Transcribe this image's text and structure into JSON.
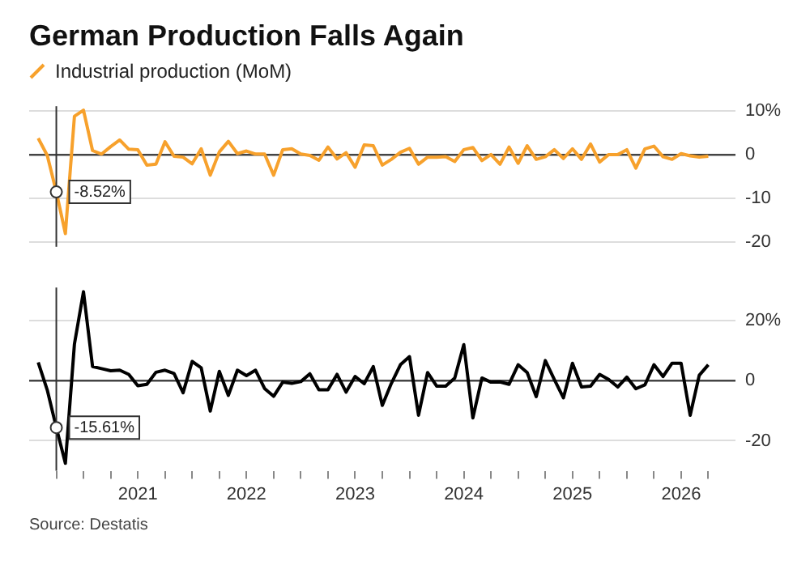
{
  "chart_data": [
    {
      "type": "line",
      "title": "German Production Falls Again",
      "x": [
        "2020-02",
        "2020-03",
        "2020-04",
        "2020-05",
        "2020-06",
        "2020-07",
        "2020-08",
        "2020-09",
        "2020-10",
        "2020-11",
        "2020-12",
        "2021-01",
        "2021-02",
        "2021-03",
        "2021-04",
        "2021-05",
        "2021-06",
        "2021-07",
        "2021-08",
        "2021-09",
        "2021-10",
        "2021-11",
        "2021-12",
        "2022-01",
        "2022-02",
        "2022-03",
        "2022-04",
        "2022-05",
        "2022-06",
        "2022-07",
        "2022-08",
        "2022-09",
        "2022-10",
        "2022-11",
        "2022-12",
        "2023-01",
        "2023-02",
        "2023-03",
        "2023-04",
        "2023-05",
        "2023-06",
        "2023-07",
        "2023-08",
        "2023-09",
        "2023-10",
        "2023-11",
        "2023-12",
        "2024-01",
        "2024-02",
        "2024-03",
        "2024-04",
        "2024-05",
        "2024-06",
        "2024-07",
        "2024-08",
        "2024-09",
        "2024-10",
        "2024-11",
        "2024-12",
        "2025-01",
        "2025-02",
        "2025-03",
        "2025-04",
        "2025-05",
        "2025-06",
        "2025-07",
        "2025-08",
        "2025-09",
        "2025-10",
        "2025-11",
        "2025-12",
        "2026-01",
        "2026-02",
        "2026-03",
        "2026-04"
      ],
      "series": [
        {
          "name": "Industrial production (MoM)",
          "color": "#f7a12c",
          "values": [
            3.7,
            -0.2,
            -8.5,
            -18.0,
            8.7,
            10.1,
            0.9,
            0.1,
            1.8,
            3.3,
            1.2,
            1.1,
            -2.4,
            -2.2,
            2.9,
            -0.4,
            -0.6,
            -2.1,
            1.3,
            -4.7,
            0.6,
            3.0,
            0.2,
            0.8,
            0.1,
            0.1,
            -4.7,
            1.1,
            1.3,
            0.1,
            -0.2,
            -1.3,
            1.7,
            -1.0,
            0.4,
            -2.9,
            2.2,
            2.0,
            -2.4,
            -1.1,
            0.5,
            1.4,
            -2.2,
            -0.6,
            -0.6,
            -0.5,
            -1.6,
            1.1,
            1.6,
            -1.4,
            0,
            -2.2,
            1.7,
            -2.0,
            2.0,
            -1.1,
            -0.5,
            1.1,
            -0.9,
            1.3,
            -1.1,
            2.4,
            -1.7,
            0,
            0,
            1.1,
            -3.1,
            1.3,
            1.9,
            -0.5,
            -1.1,
            0.2,
            -0.3,
            -0.6,
            -0.4
          ]
        }
      ],
      "xlim": [
        "2020-01",
        "2026-07"
      ],
      "ylim": [
        -21,
        11
      ],
      "yticks": [
        {
          "value": 10,
          "label": "10%"
        },
        0,
        -10,
        -20
      ],
      "grid": "y",
      "legend": "top left",
      "tick_labels": "y",
      "marker": "none",
      "ref_lines": [
        {
          "axis": "x",
          "value": "2020-04"
        }
      ],
      "annotations": [
        {
          "text": "-8.52%",
          "x": "2020-04",
          "y": -8.52
        }
      ]
    },
    {
      "type": "line",
      "x": [
        "2020-02",
        "2020-03",
        "2020-04",
        "2020-05",
        "2020-06",
        "2020-07",
        "2020-08",
        "2020-09",
        "2020-10",
        "2020-11",
        "2020-12",
        "2021-01",
        "2021-02",
        "2021-03",
        "2021-04",
        "2021-05",
        "2021-06",
        "2021-07",
        "2021-08",
        "2021-09",
        "2021-10",
        "2021-11",
        "2021-12",
        "2022-01",
        "2022-02",
        "2022-03",
        "2022-04",
        "2022-05",
        "2022-06",
        "2022-07",
        "2022-08",
        "2022-09",
        "2022-10",
        "2022-11",
        "2022-12",
        "2023-01",
        "2023-02",
        "2023-03",
        "2023-04",
        "2023-05",
        "2023-06",
        "2023-07",
        "2023-08",
        "2023-09",
        "2023-10",
        "2023-11",
        "2023-12",
        "2024-01",
        "2024-02",
        "2024-03",
        "2024-04",
        "2024-05",
        "2024-06",
        "2024-07",
        "2024-08",
        "2024-09",
        "2024-10",
        "2024-11",
        "2024-12",
        "2025-01",
        "2025-02",
        "2025-03",
        "2025-04",
        "2025-05",
        "2025-06",
        "2025-07",
        "2025-08",
        "2025-09",
        "2025-10",
        "2025-11",
        "2025-12",
        "2026-01",
        "2026-02",
        "2026-03",
        "2026-04"
      ],
      "series": [
        {
          "color": "#000000",
          "values": [
            6.1,
            -3.1,
            -15.6,
            -27.5,
            12.2,
            29.6,
            4.7,
            4.0,
            3.3,
            3.5,
            2.1,
            -1.7,
            -1.2,
            2.8,
            3.5,
            2.4,
            -4.0,
            6.4,
            4.3,
            -10.1,
            3.1,
            -4.9,
            3.5,
            1.7,
            3.5,
            -2.6,
            -5.2,
            -0.5,
            -0.9,
            -0.3,
            2.3,
            -3.0,
            -3.0,
            2.1,
            -3.8,
            1.4,
            -1.0,
            4.7,
            -8.2,
            -0.9,
            5.3,
            8.0,
            -11.5,
            2.7,
            -1.8,
            -1.8,
            0.9,
            12.0,
            -12.4,
            0.9,
            -0.5,
            -0.4,
            -1.2,
            5.3,
            2.7,
            -5.3,
            6.7,
            0.4,
            -5.7,
            5.8,
            -2.1,
            -1.8,
            2.1,
            0.4,
            -2.1,
            1.2,
            -2.7,
            -1.4,
            5.3,
            1.4,
            5.8,
            5.8,
            -11.5,
            1.8,
            5.3
          ]
        }
      ],
      "xlim": [
        "2020-01",
        "2026-07"
      ],
      "xticks": [
        {
          "value": "2020-04",
          "label": null
        },
        {
          "value": "2020-07",
          "label": null
        },
        {
          "value": "2020-10",
          "label": null
        },
        {
          "value": "2021-01",
          "label": "2021"
        },
        {
          "value": "2021-04",
          "label": null
        },
        {
          "value": "2021-07",
          "label": null
        },
        {
          "value": "2021-10",
          "label": null
        },
        {
          "value": "2022-01",
          "label": "2022"
        },
        {
          "value": "2022-04",
          "label": null
        },
        {
          "value": "2022-07",
          "label": null
        },
        {
          "value": "2022-10",
          "label": null
        },
        {
          "value": "2023-01",
          "label": "2023"
        },
        {
          "value": "2023-04",
          "label": null
        },
        {
          "value": "2023-07",
          "label": null
        },
        {
          "value": "2023-10",
          "label": null
        },
        {
          "value": "2024-01",
          "label": "2024"
        },
        {
          "value": "2024-04",
          "label": null
        },
        {
          "value": "2024-07",
          "label": null
        },
        {
          "value": "2024-10",
          "label": null
        },
        {
          "value": "2025-01",
          "label": "2025"
        },
        {
          "value": "2025-04",
          "label": null
        },
        {
          "value": "2025-07",
          "label": null
        },
        {
          "value": "2025-10",
          "label": null
        },
        {
          "value": "2026-01",
          "label": "2026"
        },
        {
          "value": "2026-04",
          "label": null
        }
      ],
      "ylim": [
        -30,
        31
      ],
      "yticks": [
        {
          "value": 20,
          "label": "20%"
        },
        0,
        -20
      ],
      "grid": "y",
      "marker": "none",
      "ref_lines": [
        {
          "axis": "x",
          "value": "2020-04"
        }
      ],
      "annotations": [
        {
          "text": "-15.61%",
          "x": "2020-04",
          "y": -15.61
        },
        "Source: Destatis"
      ]
    }
  ]
}
